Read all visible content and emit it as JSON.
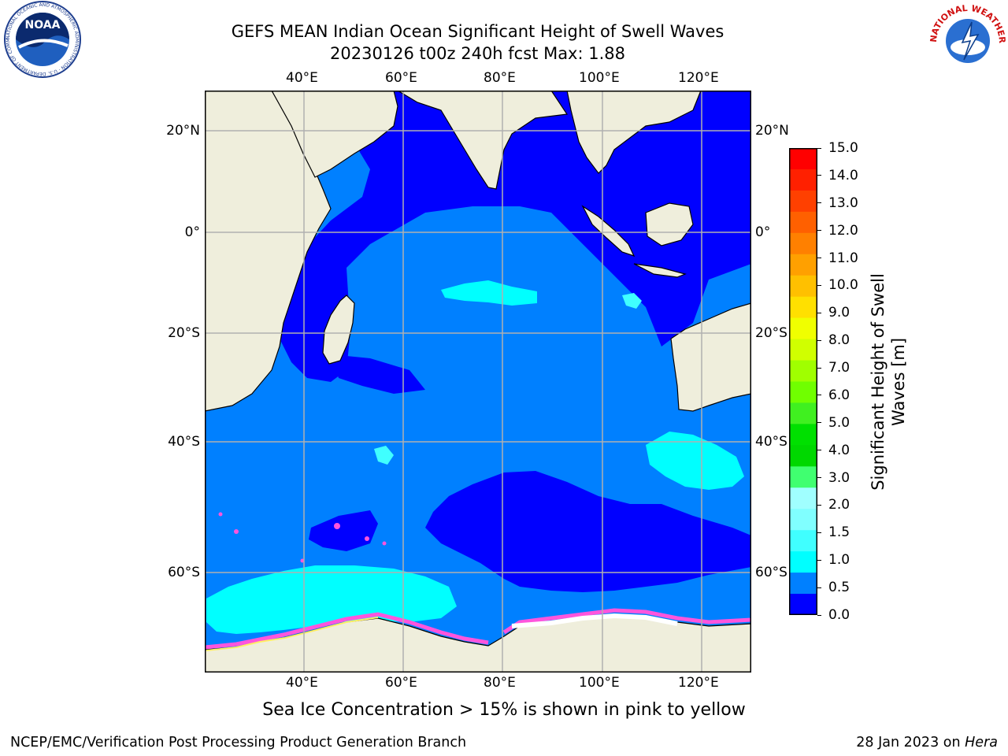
{
  "title": {
    "line1": "GEFS MEAN Indian Ocean Significant Height of Swell Waves",
    "line2": "20230126 t00z 240h fcst   Max: 1.88"
  },
  "map": {
    "lon_labels": [
      "40°E",
      "60°E",
      "80°E",
      "100°E",
      "120°E"
    ],
    "lat_labels": [
      "20°N",
      "0°",
      "20°S",
      "40°S",
      "60°S"
    ],
    "colors": {
      "land": "#efeedc",
      "ocean_0": "#0000ff",
      "ocean_05": "#0080ff",
      "ocean_10": "#00ffff",
      "ocean_15": "#40ffff",
      "sea_ice": "#ff55dd",
      "sea_ice_edge": "#ffee66",
      "grid": "#b0b0b0"
    }
  },
  "colorbar": {
    "label": "Significant Height of Swell Waves [m]",
    "label_line1": "Significant Height of Swell",
    "label_line2": "Waves [m]",
    "ticks": [
      "15.0",
      "14.0",
      "13.0",
      "12.0",
      "11.0",
      "10.0",
      "9.0",
      "8.0",
      "7.0",
      "6.0",
      "5.0",
      "4.0",
      "3.0",
      "2.0",
      "1.5",
      "1.0",
      "0.5",
      "0.0"
    ],
    "colors_top_down": [
      "#ff0000",
      "#ff2000",
      "#ff4000",
      "#ff6000",
      "#ff8000",
      "#ffa000",
      "#ffc000",
      "#ffe000",
      "#f0ff00",
      "#d0ff00",
      "#a0ff00",
      "#70ff00",
      "#40f020",
      "#00e000",
      "#00d800",
      "#40ff70",
      "#a0ffff",
      "#80ffff",
      "#40ffff",
      "#00ffff",
      "#0080ff",
      "#0000ff"
    ]
  },
  "caption": "Sea Ice Concentration > 15% is shown in pink to yellow",
  "footer": {
    "left": "NCEP/EMC/Verification Post Processing Product Generation Branch",
    "right_prefix": "28 Jan 2023 on ",
    "right_host": "Hera"
  },
  "logos": {
    "noaa": "NOAA",
    "nws": "NATIONAL WEATHER SERVICE",
    "noaa_ring": "NATIONAL OCEANIC AND ATMOSPHERIC ADMINISTRATION · U.S. DEPARTMENT OF COMMERCE"
  }
}
